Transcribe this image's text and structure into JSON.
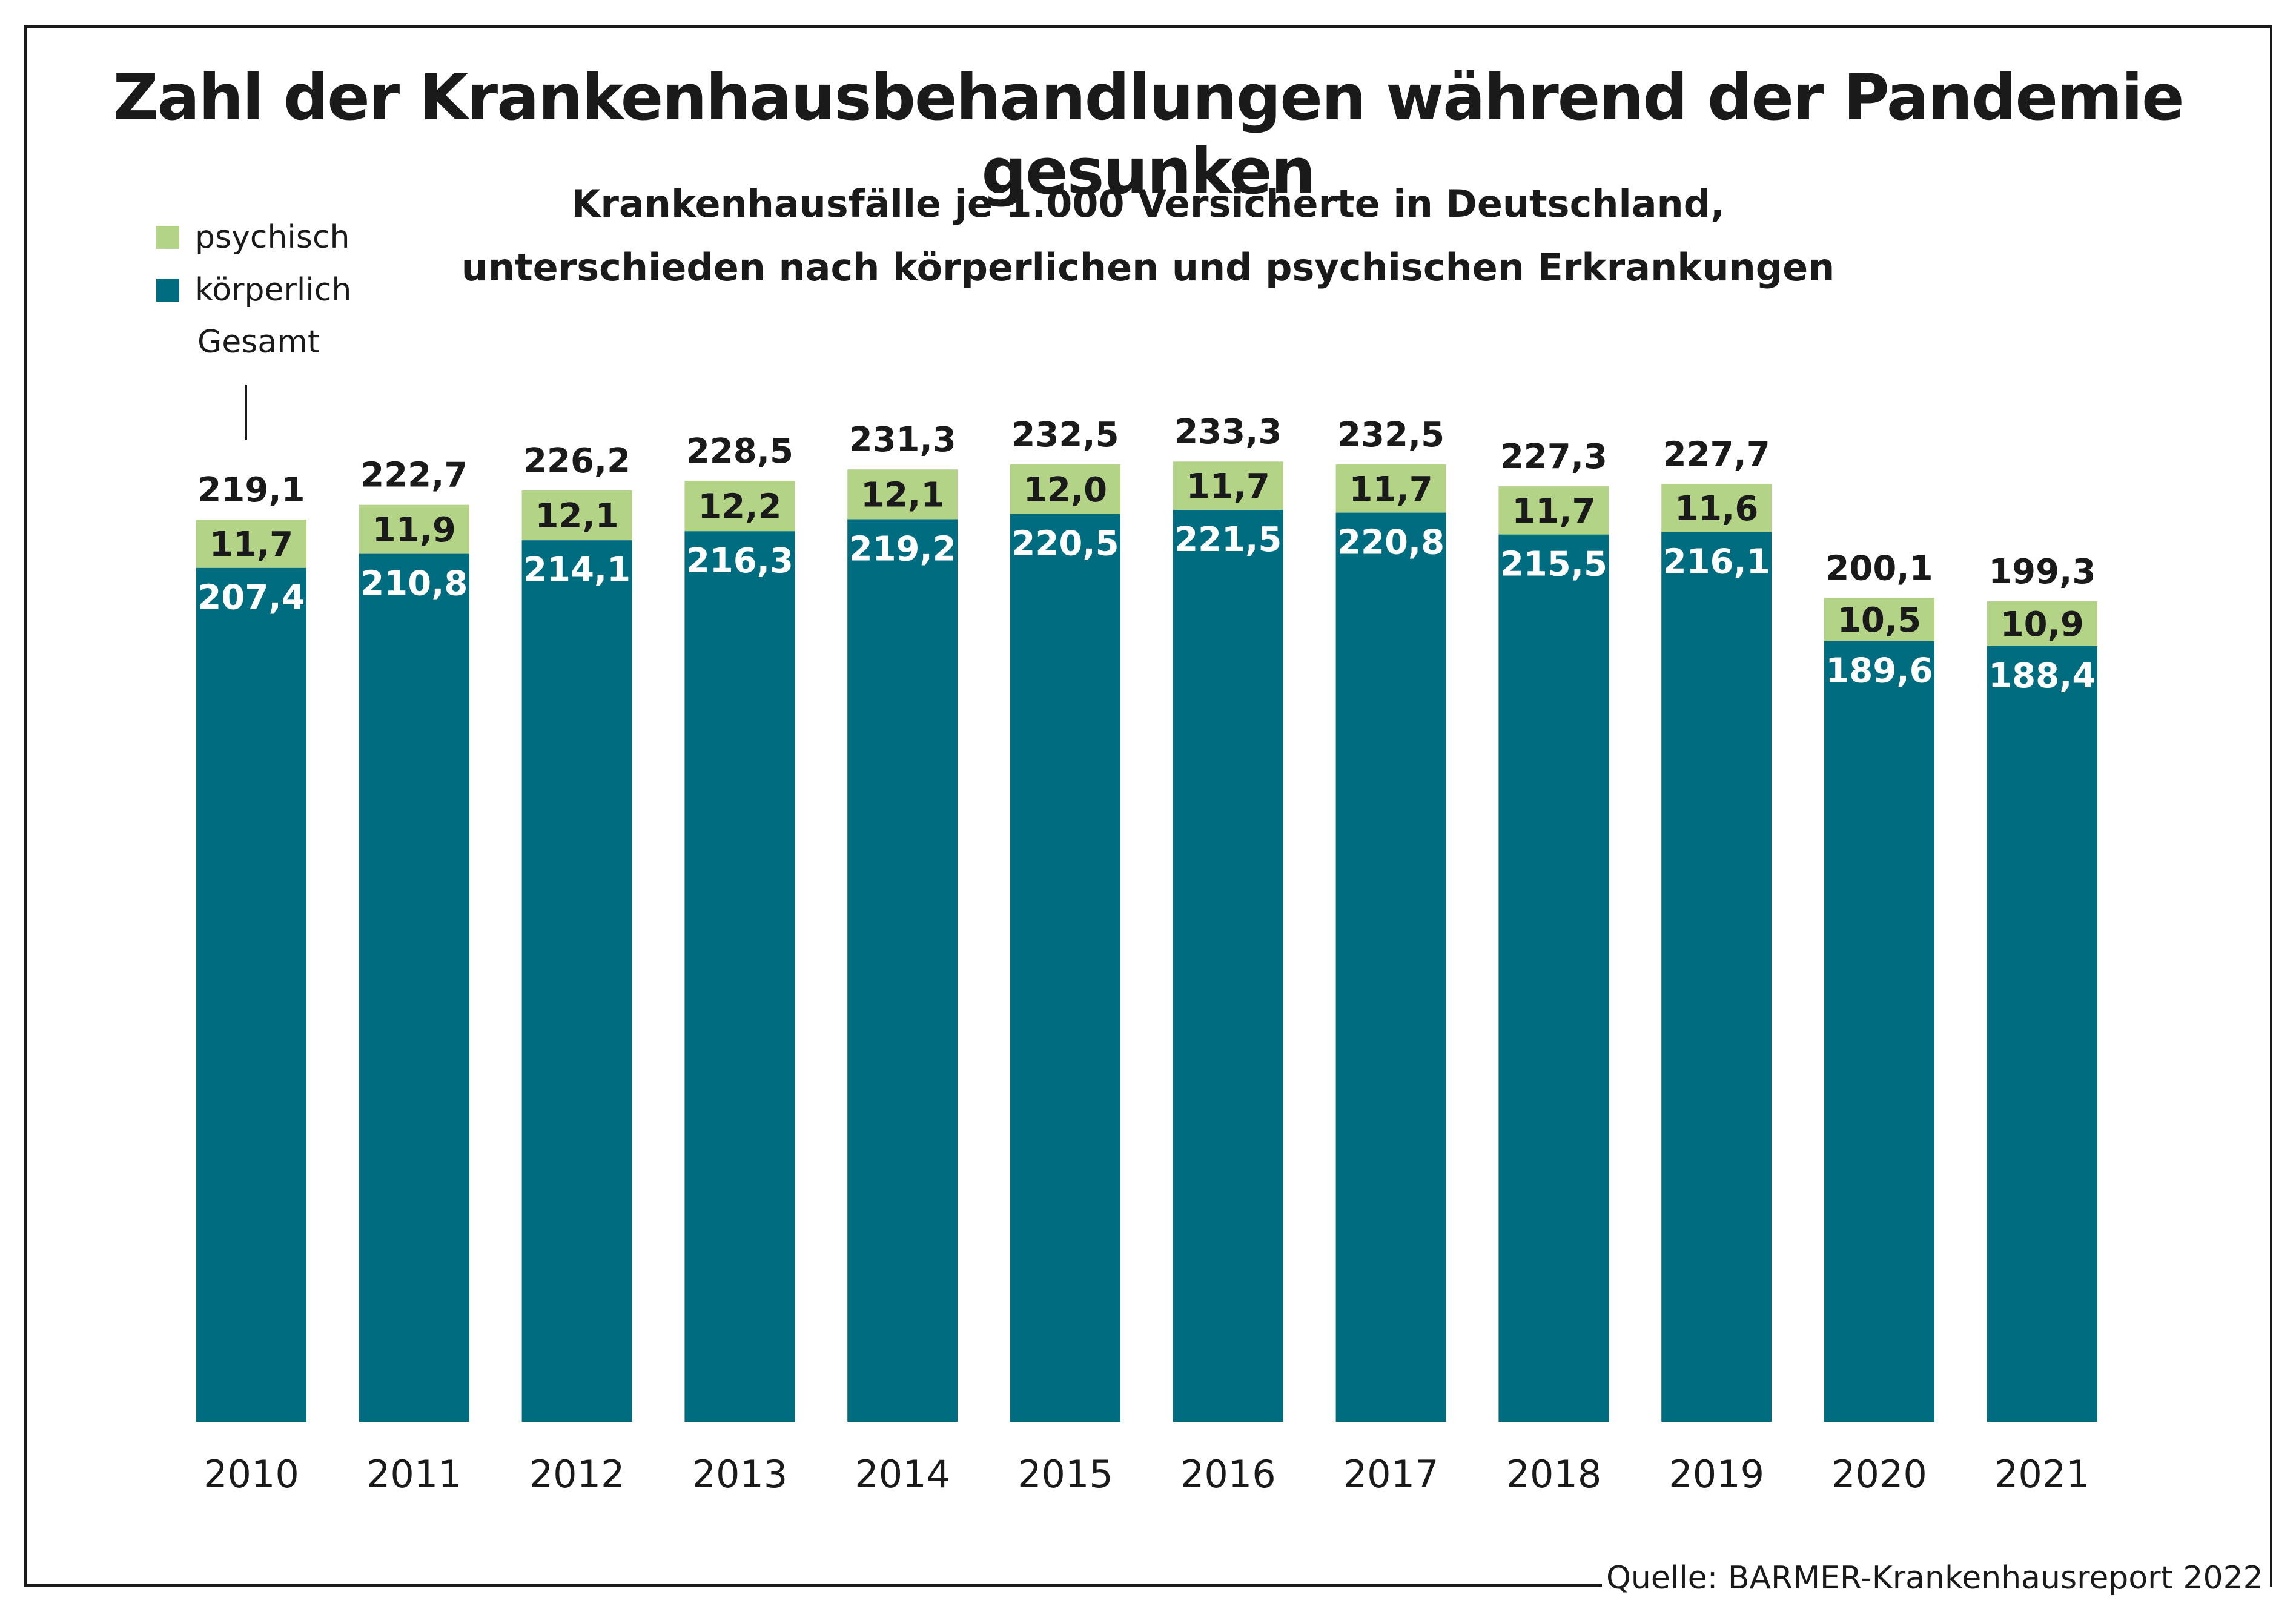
{
  "title": "Zahl der Krankenhausbehandlungen während der Pandemie gesunken",
  "subtitle_line1": "Krankenhausfälle je 1.000 Versicherte in Deutschland,",
  "subtitle_line2": "unterschieden nach körperlichen und psychischen Erkrankungen",
  "legend": {
    "psychisch": "psychisch",
    "koerperlich": "körperlich",
    "gesamt": "Gesamt"
  },
  "source": "Quelle: BARMER-Krankenhausreport 2022",
  "colors": {
    "psychisch": "#b3d387",
    "koerperlich": "#006c7f"
  },
  "chart_data": {
    "type": "bar",
    "stacked": true,
    "categories": [
      "2010",
      "2011",
      "2012",
      "2013",
      "2014",
      "2015",
      "2016",
      "2017",
      "2018",
      "2019",
      "2020",
      "2021"
    ],
    "series": [
      {
        "name": "körperlich",
        "values": [
          207.4,
          210.8,
          214.1,
          216.3,
          219.2,
          220.5,
          221.5,
          220.8,
          215.5,
          216.1,
          189.6,
          188.4
        ],
        "labels": [
          "207,4",
          "210,8",
          "214,1",
          "216,3",
          "219,2",
          "220,5",
          "221,5",
          "220,8",
          "215,5",
          "216,1",
          "189,6",
          "188,4"
        ]
      },
      {
        "name": "psychisch",
        "values": [
          11.7,
          11.9,
          12.1,
          12.2,
          12.1,
          12.0,
          11.7,
          11.7,
          11.7,
          11.6,
          10.5,
          10.9
        ],
        "labels": [
          "11,7",
          "11,9",
          "12,1",
          "12,2",
          "12,1",
          "12,0",
          "11,7",
          "11,7",
          "11,7",
          "11,6",
          "10,5",
          "10,9"
        ]
      }
    ],
    "totals": [
      219.1,
      222.7,
      226.2,
      228.5,
      231.3,
      232.5,
      233.3,
      232.5,
      227.3,
      227.7,
      200.1,
      199.3
    ],
    "total_labels": [
      "219,1",
      "222,7",
      "226,2",
      "228,5",
      "231,3",
      "232,5",
      "233,3",
      "232,5",
      "227,3",
      "227,7",
      "200,1",
      "199,3"
    ],
    "title": "Krankenhausfälle je 1.000 Versicherte in Deutschland",
    "xlabel": "",
    "ylabel": "",
    "ylim": [
      0,
      240
    ],
    "grid": false,
    "legend_position": "top-left"
  }
}
